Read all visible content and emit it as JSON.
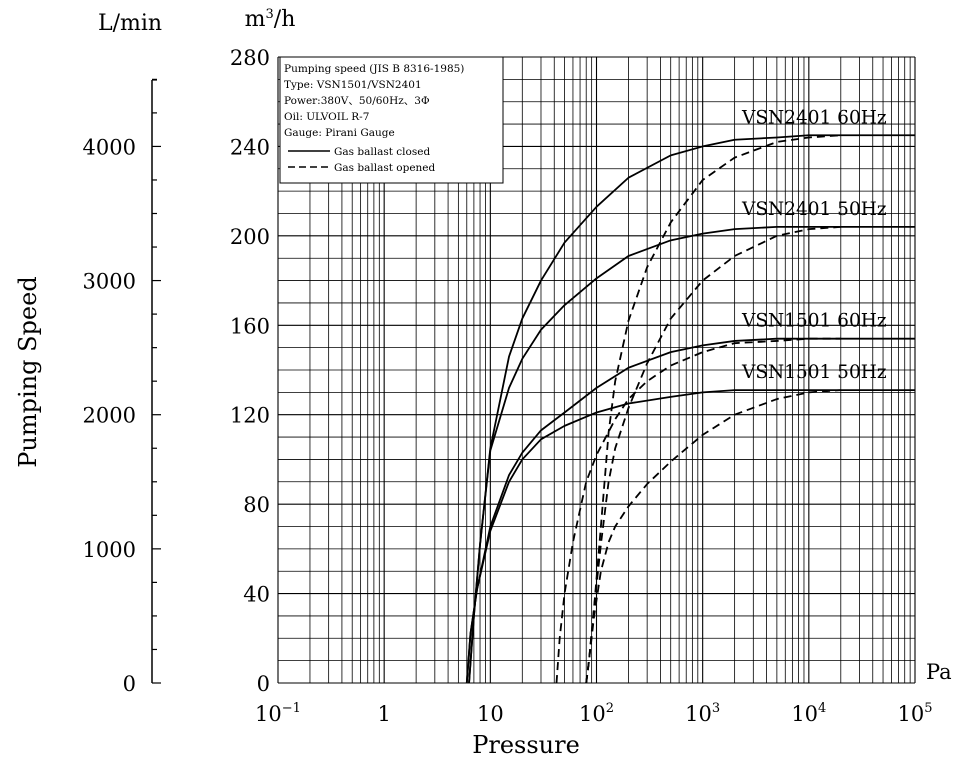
{
  "chart_data": {
    "type": "line",
    "xlabel": "Pressure",
    "ylabel": "Pumping Speed",
    "x_unit": "Pa",
    "y_unit_primary": "m³/h",
    "y_unit_secondary": "L/min",
    "x_scale": "log",
    "xlim": [
      0.1,
      100000
    ],
    "ylim": [
      0,
      280
    ],
    "grid": true,
    "x_ticks": [
      {
        "value": 0.1,
        "base": "10",
        "exp": "−1"
      },
      {
        "value": 1,
        "base": "1",
        "exp": ""
      },
      {
        "value": 10,
        "base": "10",
        "exp": ""
      },
      {
        "value": 100,
        "base": "10",
        "exp": "2"
      },
      {
        "value": 1000,
        "base": "10",
        "exp": "3"
      },
      {
        "value": 10000,
        "base": "10",
        "exp": "4"
      },
      {
        "value": 100000,
        "base": "10",
        "exp": "5"
      }
    ],
    "y_ticks": [
      "0",
      "40",
      "80",
      "120",
      "160",
      "200",
      "240",
      "280"
    ],
    "y2_ticks": [
      {
        "value": 0,
        "label": "0"
      },
      {
        "value": 1000,
        "label": "1000"
      },
      {
        "value": 2000,
        "label": "2000"
      },
      {
        "value": 3000,
        "label": "3000"
      },
      {
        "value": 4000,
        "label": "4000"
      }
    ],
    "y2_max": 4666.7,
    "legend": {
      "position": "top-left",
      "lines": [
        "Pumping speed (JIS B 8316-1985)",
        "Type: VSN1501/VSN2401",
        "Power:380V、50/60Hz、3Φ",
        "Oil: ULVOIL R-7",
        "Gauge: Pirani Gauge"
      ],
      "entries": [
        {
          "label": "Gas ballast closed",
          "style": "solid"
        },
        {
          "label": "Gas ballast opened",
          "style": "dashed"
        }
      ]
    },
    "curve_labels": [
      {
        "text": "VSN2401 60Hz",
        "series": 0
      },
      {
        "text": "VSN2401 50Hz",
        "series": 1
      },
      {
        "text": "VSN1501 60Hz",
        "series": 2
      },
      {
        "text": "VSN1501 50Hz",
        "series": 3
      }
    ],
    "series": [
      {
        "name": "VSN2401 60Hz",
        "style": "solid",
        "x": [
          6.3,
          7,
          8,
          10,
          15,
          20,
          30,
          50,
          100,
          200,
          500,
          1000,
          2000,
          5000,
          10000,
          100000
        ],
        "y": [
          0,
          30,
          62,
          105,
          146,
          163,
          180,
          197,
          213,
          226,
          236,
          240,
          243,
          244,
          245,
          245
        ]
      },
      {
        "name": "VSN2401 60Hz",
        "style": "dashed",
        "x": [
          80,
          85,
          95,
          110,
          130,
          150,
          200,
          300,
          500,
          1000,
          2000,
          5000,
          10000,
          20000
        ],
        "y": [
          0,
          10,
          34,
          70,
          112,
          135,
          162,
          186,
          206,
          225,
          235,
          242,
          244,
          245
        ]
      },
      {
        "name": "VSN2401 50Hz",
        "style": "solid",
        "x": [
          6.3,
          7,
          8,
          10,
          15,
          20,
          30,
          50,
          100,
          200,
          500,
          1000,
          2000,
          5000,
          10000,
          100000
        ],
        "y": [
          0,
          30,
          62,
          104,
          132,
          145,
          158,
          169,
          181,
          191,
          198,
          201,
          203,
          204,
          204,
          204
        ]
      },
      {
        "name": "VSN2401 50Hz",
        "style": "dashed",
        "x": [
          80,
          85,
          95,
          110,
          130,
          150,
          200,
          300,
          500,
          1000,
          2000,
          5000,
          10000,
          20000
        ],
        "y": [
          0,
          10,
          34,
          62,
          90,
          105,
          123,
          143,
          163,
          180,
          191,
          200,
          203,
          204
        ]
      },
      {
        "name": "VSN1501 60Hz",
        "style": "solid",
        "x": [
          6,
          6.5,
          7.5,
          10,
          15,
          20,
          30,
          50,
          100,
          200,
          500,
          1000,
          2000,
          5000,
          10000,
          100000
        ],
        "y": [
          0,
          22,
          42,
          70,
          93,
          103,
          113,
          121,
          132,
          141,
          148,
          151,
          153,
          154,
          154,
          154
        ]
      },
      {
        "name": "VSN1501 60Hz",
        "style": "dashed",
        "x": [
          42,
          45,
          50,
          60,
          80,
          100,
          150,
          200,
          300,
          500,
          1000,
          2000,
          5000,
          10000,
          20000
        ],
        "y": [
          0,
          20,
          40,
          63,
          90,
          102,
          118,
          127,
          135,
          142,
          148,
          152,
          153,
          154,
          154
        ]
      },
      {
        "name": "VSN1501 50Hz",
        "style": "solid",
        "x": [
          6,
          6.5,
          7.5,
          10,
          15,
          20,
          30,
          50,
          100,
          200,
          500,
          1000,
          2000,
          5000,
          10000,
          100000
        ],
        "y": [
          0,
          22,
          42,
          68,
          90,
          100,
          109,
          115,
          121,
          125,
          128,
          130,
          131,
          131,
          131,
          131
        ]
      },
      {
        "name": "VSN1501 50Hz",
        "style": "dashed",
        "x": [
          80,
          85,
          95,
          110,
          130,
          150,
          200,
          300,
          500,
          1000,
          2000,
          5000,
          10000,
          20000
        ],
        "y": [
          0,
          10,
          30,
          50,
          63,
          70,
          79,
          89,
          99,
          111,
          120,
          127,
          130,
          131
        ]
      }
    ]
  }
}
